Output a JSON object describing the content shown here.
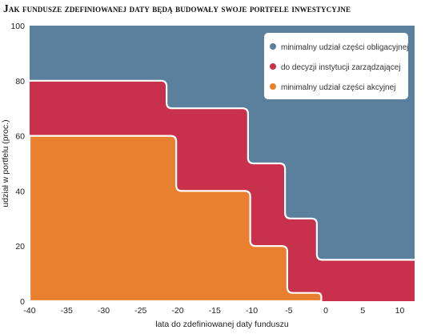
{
  "chart_data": {
    "type": "area",
    "title": "Jak fundusze zdefiniowanej daty będą budowały swoje portfele inwestycyjne",
    "xlabel": "lata do zdefiniowanej daty funduszu",
    "ylabel": "udział w portfelu (proc.)",
    "xlim": [
      -40,
      12
    ],
    "ylim": [
      0,
      100
    ],
    "x_ticks": [
      -40,
      -35,
      -30,
      -25,
      -20,
      -15,
      -10,
      -5,
      0,
      5,
      10
    ],
    "y_ticks": [
      0,
      20,
      40,
      60,
      80,
      100
    ],
    "legend_position": "top-right",
    "series": [
      {
        "name": "minimalny udział części obligacyjnej",
        "color": "#5b809e",
        "lower_is_top_of": "do decyzji instytucji zarządzającej",
        "upper": 100
      },
      {
        "name": "do decyzji instytucji zarządzającej",
        "color": "#c8304c",
        "x": [
          -40,
          -24,
          -21,
          -12,
          -10,
          -7,
          -5,
          -3,
          -1,
          12
        ],
        "upper": [
          80,
          80,
          70,
          70,
          50,
          50,
          30,
          30,
          15,
          15
        ],
        "lower": [
          60,
          60,
          60,
          60,
          40,
          40,
          20,
          20,
          0,
          0
        ]
      },
      {
        "name": "minimalny udział części akcyjnej",
        "color": "#e8802f",
        "x": [
          -40,
          -20,
          -10,
          -5,
          0
        ],
        "values": [
          60,
          60,
          40,
          20,
          0
        ]
      }
    ]
  }
}
